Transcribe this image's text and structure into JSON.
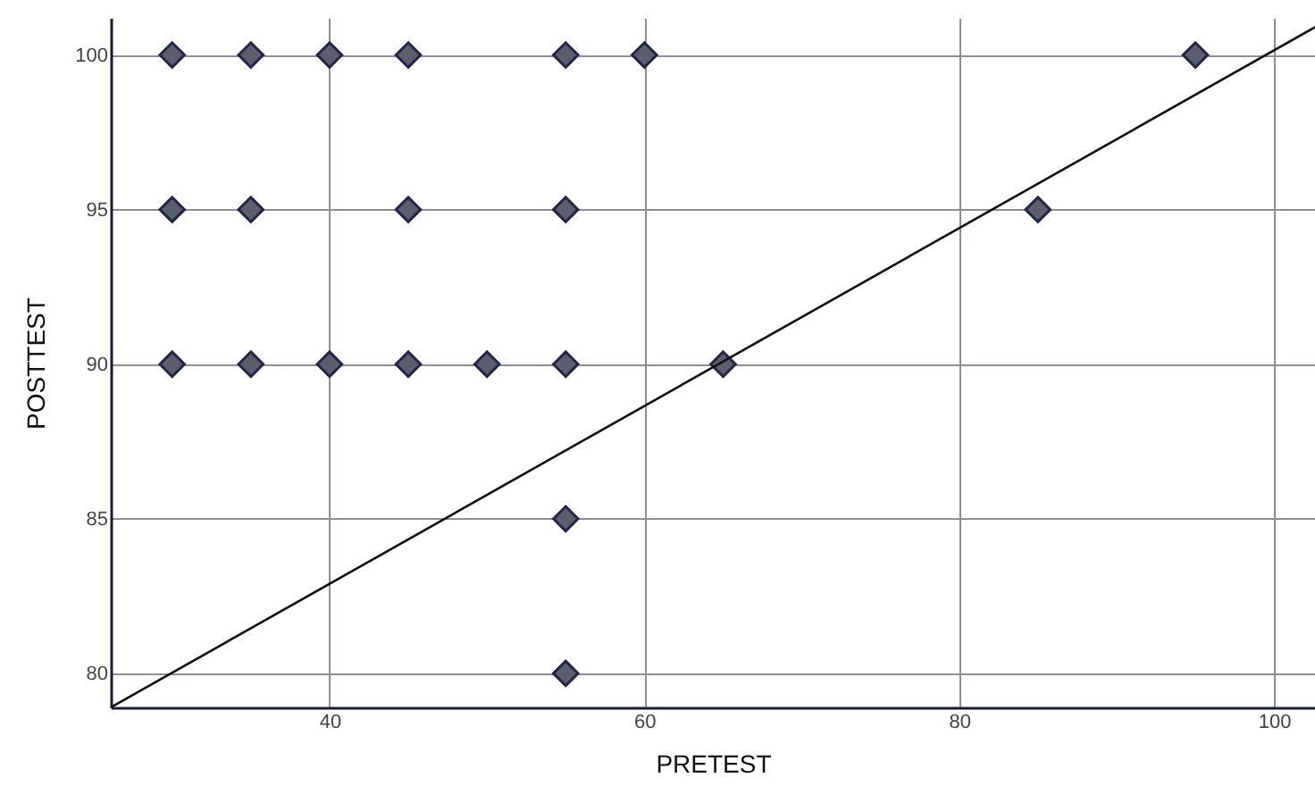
{
  "chart_data": {
    "type": "scatter",
    "xlabel": "PRETEST",
    "ylabel": "POSTTEST",
    "xlim": [
      26.1,
      102.6
    ],
    "ylim": [
      78.9,
      101.2
    ],
    "xticks": [
      40,
      60,
      80,
      100
    ],
    "yticks": [
      80,
      85,
      90,
      95,
      100
    ],
    "grid": true,
    "series": [
      {
        "color": "#5b5e6b",
        "marker": "diamond",
        "x": [
          30,
          35,
          40,
          45,
          55,
          60,
          95,
          30,
          35,
          45,
          55,
          85,
          30,
          35,
          40,
          45,
          50,
          55,
          65,
          55,
          55
        ],
        "values": [
          100,
          100,
          100,
          100,
          100,
          100,
          100,
          95,
          95,
          95,
          95,
          95,
          90,
          90,
          90,
          90,
          90,
          90,
          90,
          85,
          80
        ]
      },
      {
        "type": "line",
        "color": "#111111",
        "marker": "none",
        "line_style": "solid",
        "x": [
          26.1,
          102.6
        ],
        "values": [
          78.9,
          100.9
        ]
      }
    ]
  }
}
